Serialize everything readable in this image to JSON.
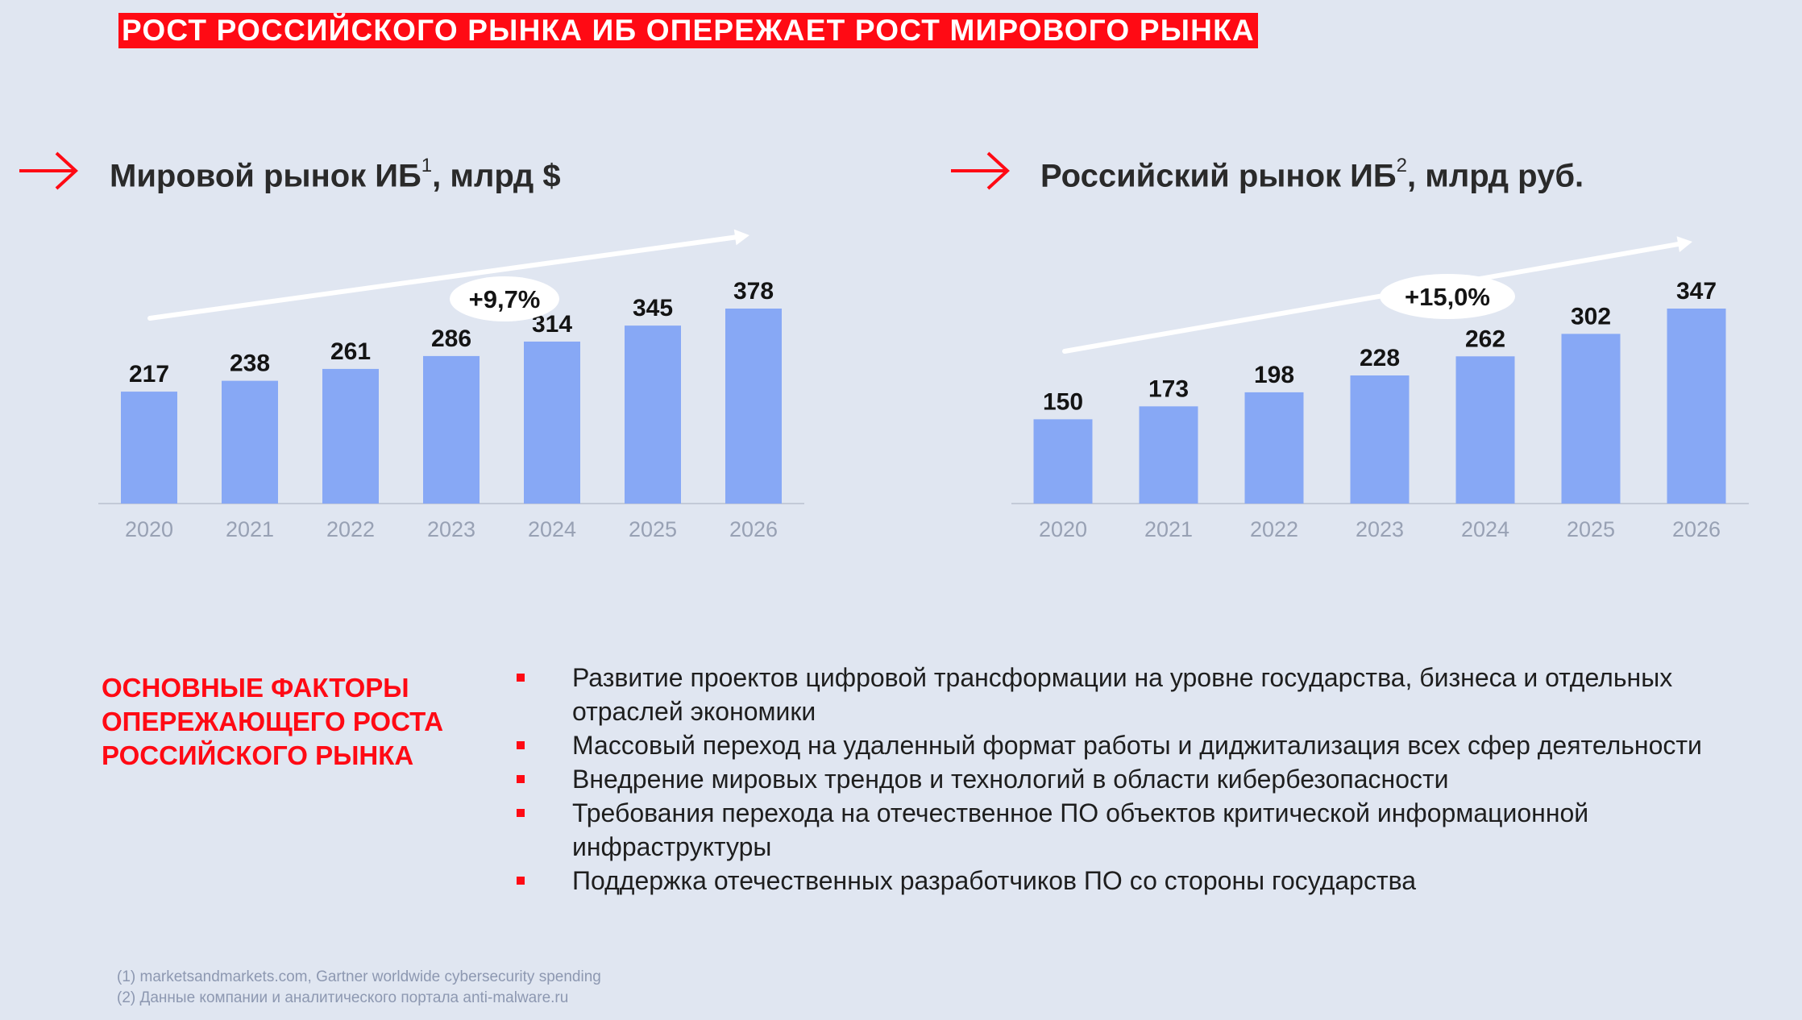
{
  "headline": "РОСТ РОССИЙСКОГО РЫНКА ИБ ОПЕРЕЖАЕТ РОСТ МИРОВОГО РЫНКА",
  "colors": {
    "accent": "#ff0a14",
    "bar": "#87a8f5",
    "background": "#e0e6f1"
  },
  "icons": {
    "title_arrow": "arrow-right-icon",
    "trend_arrow": "trend-arrow-icon"
  },
  "chart_data": [
    {
      "type": "bar",
      "title": "Мировой рынок ИБ",
      "title_sup": "1",
      "title_suffix": ", млрд $",
      "categories": [
        "2020",
        "2021",
        "2022",
        "2023",
        "2024",
        "2025",
        "2026"
      ],
      "values": [
        217,
        238,
        261,
        286,
        314,
        345,
        378
      ],
      "ylim": [
        0,
        378
      ],
      "growth_label": "+9,7%",
      "xlabel": "",
      "ylabel": "",
      "grid": false
    },
    {
      "type": "bar",
      "title": "Российский рынок ИБ",
      "title_sup": "2",
      "title_suffix": ", млрд руб.",
      "categories": [
        "2020",
        "2021",
        "2022",
        "2023",
        "2024",
        "2025",
        "2026"
      ],
      "values": [
        150,
        173,
        198,
        228,
        262,
        302,
        347
      ],
      "ylim": [
        0,
        347
      ],
      "growth_label": "+15,0%",
      "xlabel": "",
      "ylabel": "",
      "grid": false
    }
  ],
  "drivers": {
    "title": "ОСНОВНЫЕ ФАКТОРЫ ОПЕРЕЖАЮЩЕГО РОСТА РОССИЙСКОГО РЫНКА",
    "items": [
      "Развитие проектов цифровой трансформации на уровне государства, бизнеса и отдельных отраслей экономики",
      "Массовый переход на удаленный формат работы и диджитализация всех сфер деятельности",
      "Внедрение мировых трендов и технологий в области кибербезопасности",
      "Требования перехода на отечественное ПО объектов критической информационной инфраструктуры",
      "Поддержка отечественных разработчиков ПО со стороны государства"
    ]
  },
  "footnotes": [
    "(1) marketsandmarkets.com, Gartner worldwide cybersecurity spending",
    "(2) Данные компании и аналитического портала anti-malware.ru"
  ]
}
